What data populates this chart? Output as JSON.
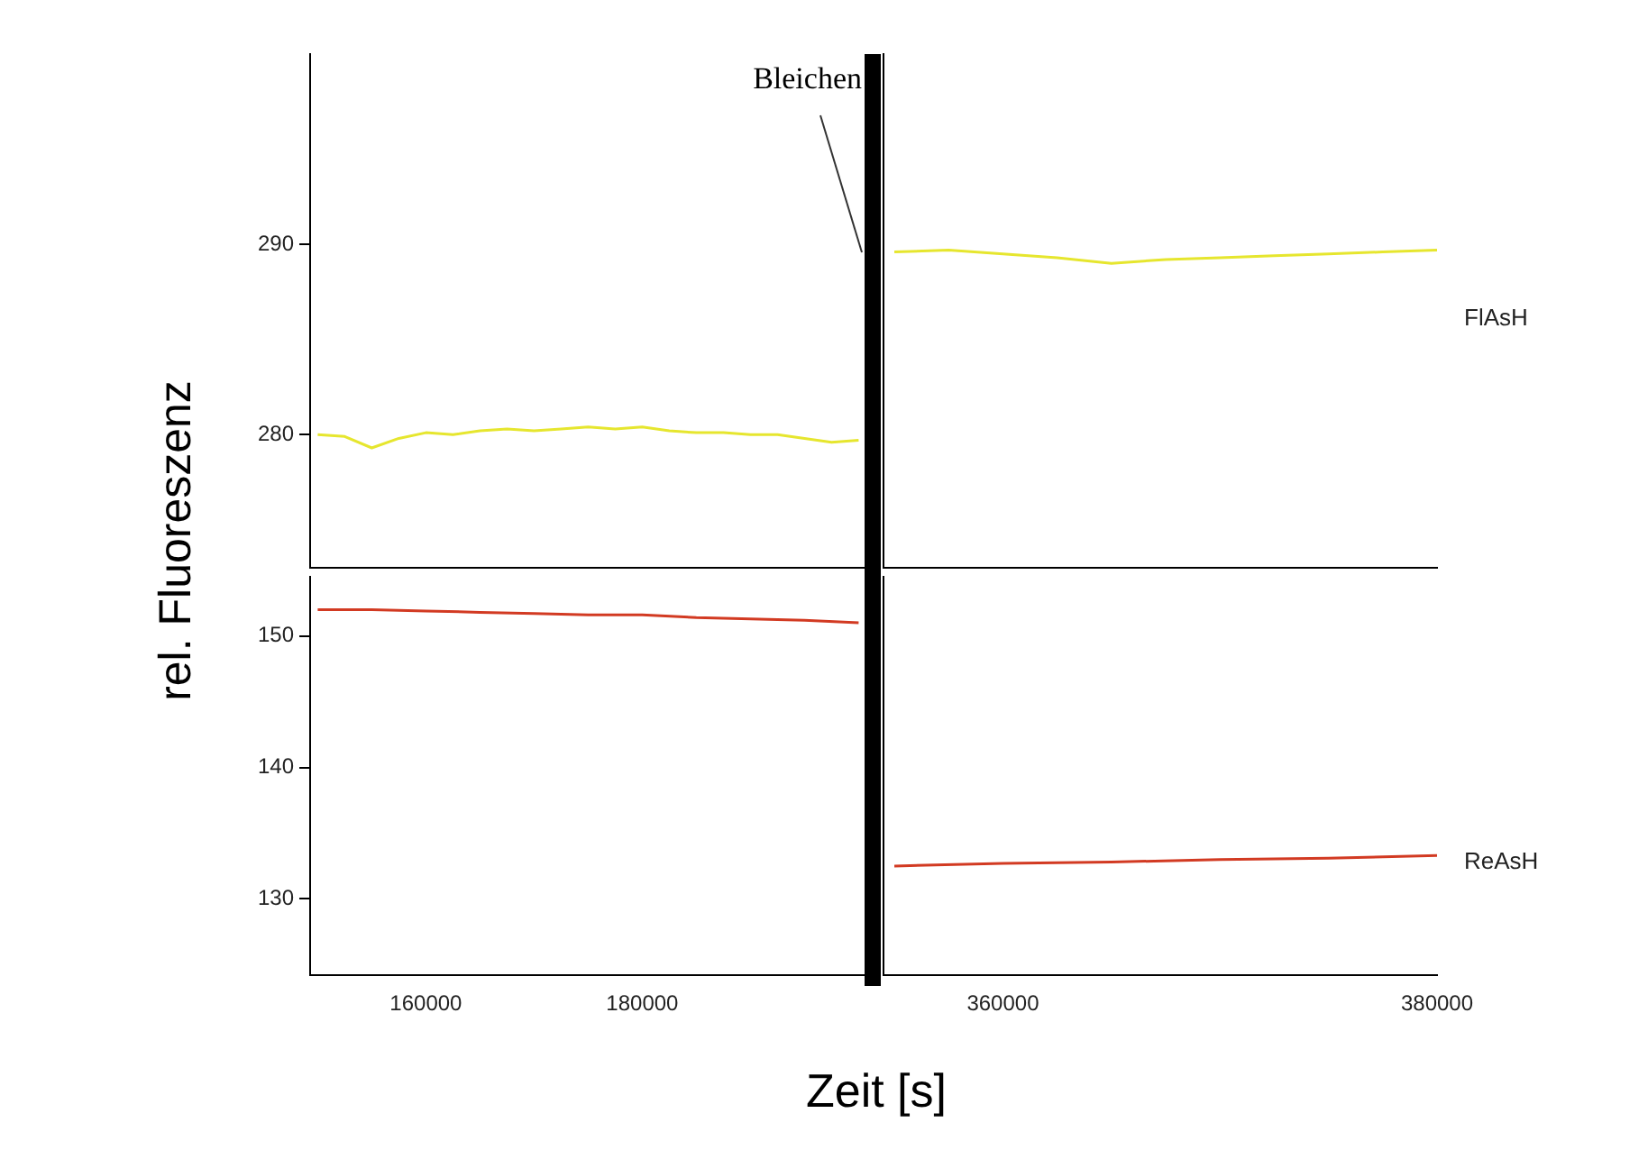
{
  "chart_data": [
    {
      "type": "line",
      "ylabel": "rel. Fluoreszenz",
      "ref_lines": [
        {
          "axis": "x",
          "value": 201300,
          "label": "Bleichen",
          "color": "#000000"
        }
      ],
      "xlim": [
        149300,
        201300
      ],
      "ylim": [
        273,
        300
      ],
      "yticks": [
        280,
        290
      ],
      "tick_labels": "y",
      "series": [
        {
          "color": "#e6e62e",
          "x": [
            150000,
            152500,
            155000,
            157500,
            160000,
            162500,
            165000,
            167500,
            170000,
            172500,
            175000,
            177500,
            180000,
            182500,
            185000,
            187500,
            190000,
            192500,
            195000,
            197500,
            200000
          ],
          "values": [
            280.0,
            279.9,
            279.3,
            279.8,
            280.1,
            280.0,
            280.2,
            280.3,
            280.2,
            280.3,
            280.4,
            280.3,
            280.4,
            280.2,
            280.1,
            280.1,
            280.0,
            280.0,
            279.8,
            279.6,
            279.7
          ]
        }
      ]
    },
    {
      "type": "line",
      "xlabel": "Zeit [s]",
      "ref_lines": [
        {
          "axis": "x",
          "value": 201300,
          "color": "#000000"
        }
      ],
      "xlim": [
        149300,
        201300
      ],
      "ylim": [
        124.2,
        154.5
      ],
      "xticks": [
        160000,
        180000
      ],
      "yticks": [
        130,
        140,
        150
      ],
      "series": [
        {
          "color": "#d23a22",
          "x": [
            150000,
            155000,
            160000,
            165000,
            170000,
            175000,
            180000,
            185000,
            190000,
            195000,
            200000
          ],
          "values": [
            152.0,
            152.0,
            151.9,
            151.8,
            151.7,
            151.6,
            151.6,
            151.4,
            151.3,
            151.2,
            151.0
          ]
        }
      ]
    },
    {
      "type": "line",
      "xlim": [
        354500,
        380000
      ],
      "ylim": [
        273,
        300
      ],
      "tick_labels": false,
      "series": [
        {
          "name": "FlAsH",
          "color": "#e6e62e",
          "x": [
            355000,
            357500,
            360000,
            362500,
            365000,
            367500,
            370000,
            372500,
            375000,
            377500,
            380000
          ],
          "values": [
            289.6,
            289.7,
            289.5,
            289.3,
            289.0,
            289.2,
            289.3,
            289.4,
            289.5,
            289.6,
            289.7
          ]
        }
      ]
    },
    {
      "type": "line",
      "xlim": [
        354500,
        380000
      ],
      "ylim": [
        124.2,
        154.5
      ],
      "xticks": [
        360000,
        380000
      ],
      "tick_labels": "x",
      "series": [
        {
          "name": "ReAsH",
          "color": "#d23a22",
          "x": [
            355000,
            360000,
            365000,
            370000,
            375000,
            380000
          ],
          "values": [
            132.5,
            132.7,
            132.8,
            133.0,
            133.1,
            133.3
          ]
        }
      ]
    }
  ]
}
